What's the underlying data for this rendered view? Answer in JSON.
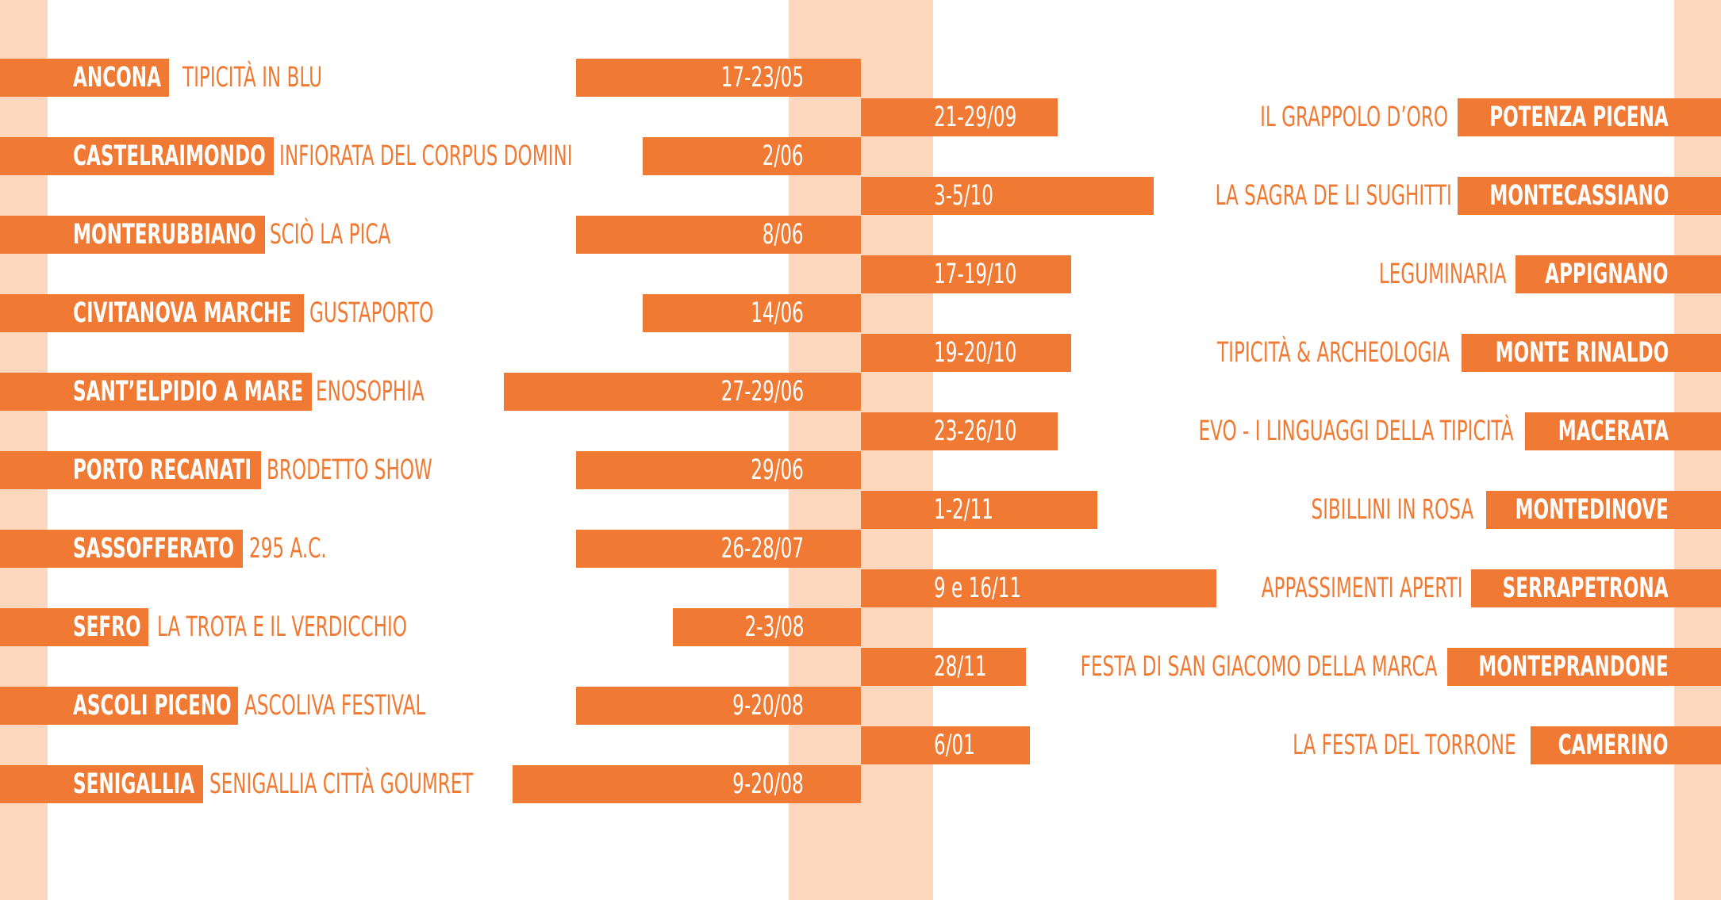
{
  "left_events": [
    {
      "city": "ANCONA",
      "event": "TIPICITÀ IN BLU",
      "date": "17-23/05"
    },
    {
      "city": "CASTELRAIMONDO",
      "event": "INFIORATA DEL CORPUS DOMINI",
      "date": "2/06"
    },
    {
      "city": "MONTERUBBIANO",
      "event": "SCIÒ LA PICA",
      "date": "8/06"
    },
    {
      "city": "CIVITANOVA MARCHE",
      "event": "GUSTAPORTO",
      "date": "14/06"
    },
    {
      "city": "SANT’ELPIDIO A MARE",
      "event": "ENOSOPHIA",
      "date": "27-29/06"
    },
    {
      "city": "PORTO RECANATI",
      "event": "BRODETTO SHOW",
      "date": "29/06"
    },
    {
      "city": "SASSOFFERATO",
      "event": "295 A.C.",
      "date": "26-28/07"
    },
    {
      "city": "SEFRO",
      "event": "LA TROTA E IL VERDICCHIO",
      "date": "2-3/08"
    },
    {
      "city": "ASCOLI PICENO",
      "event": "ASCOLIVA FESTIVAL",
      "date": "9-20/08"
    },
    {
      "city": "SENIGALLIA",
      "event": "SENIGALLIA CITTÀ GOUMRET",
      "date": "9-20/08"
    }
  ],
  "right_events": [
    {
      "date": "21-29/09",
      "event": "IL GRAPPOLO D’ORO",
      "city": "POTENZA PICENA"
    },
    {
      "date": "3-5/10",
      "event": "LA SAGRA DE LI SUGHITTI",
      "city": "MONTECASSIANO"
    },
    {
      "date": "17-19/10",
      "event": "LEGUMINARIA",
      "city": "APPIGNANO"
    },
    {
      "date": "19-20/10",
      "event": "TIPICITÀ & ARCHEOLOGIA",
      "city": "MONTE RINALDO"
    },
    {
      "date": "23-26/10",
      "event": "EVO - I LINGUAGGI DELLA TIPICITÀ",
      "city": "MACERATA"
    },
    {
      "date": "1-2/11",
      "event": "SIBILLINI IN ROSA",
      "city": "MONTEDINOVE"
    },
    {
      "date": "9 e 16/11",
      "event": "APPASSIMENTI APERTI",
      "city": "SERRAPETRONA"
    },
    {
      "date": "28/11",
      "event": "FESTA DI SAN GIACOMO DELLA MARCA",
      "city": "MONTEPRANDONE"
    },
    {
      "date": "6/01",
      "event": "LA FESTA DEL TORRONE",
      "city": "CAMERINO"
    }
  ],
  "colors": {
    "accent": "#f07a33",
    "stripe": "#fdd8bf",
    "background": "#ffffff"
  }
}
